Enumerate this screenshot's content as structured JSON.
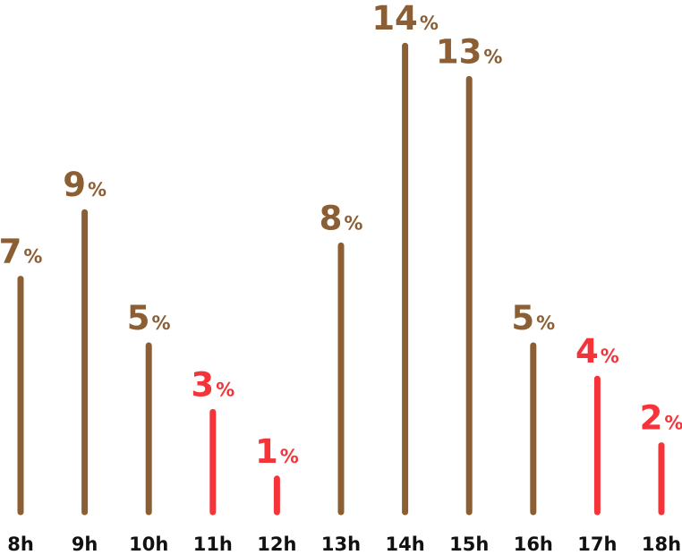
{
  "chart_data": {
    "type": "bar",
    "categories": [
      "8h",
      "9h",
      "10h",
      "11h",
      "12h",
      "13h",
      "14h",
      "15h",
      "16h",
      "17h",
      "18h"
    ],
    "values": [
      7,
      9,
      5,
      3,
      1,
      8,
      14,
      13,
      5,
      4,
      2
    ],
    "value_suffix": "%",
    "highlighted": [
      false,
      false,
      false,
      true,
      true,
      false,
      false,
      false,
      false,
      true,
      true
    ],
    "title": "",
    "xlabel": "",
    "ylabel": "",
    "ylim": [
      0,
      14
    ],
    "grid": false,
    "legend": "none",
    "colors": {
      "default": "#8b5e34",
      "highlight": "#f5343a",
      "label": "#111111"
    }
  }
}
